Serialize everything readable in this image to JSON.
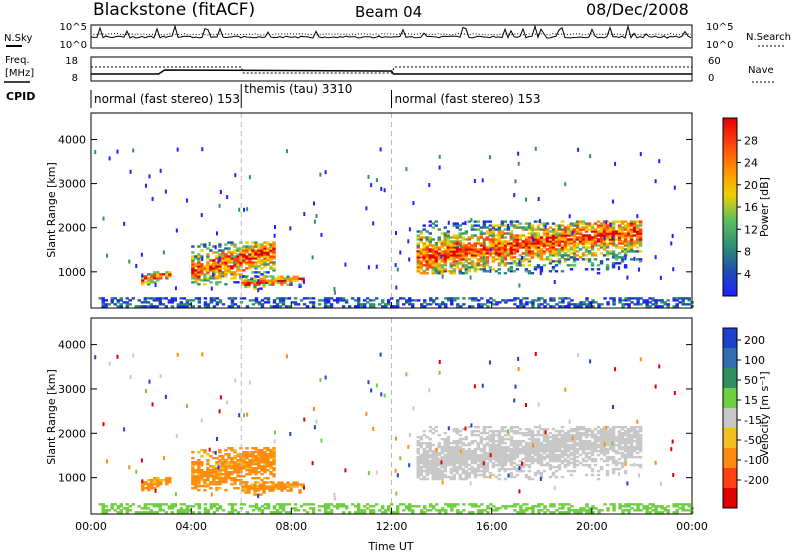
{
  "header": {
    "station": "Blackstone (fitACF)",
    "beam": "Beam 04",
    "date": "08/Dec/2008"
  },
  "top_panels": {
    "noise_label": "N.Sky",
    "noise_right_label": "N.Search",
    "noise_ticks_left": [
      "10^5",
      "10^0"
    ],
    "noise_ticks_right": [
      "10^5",
      "10^0"
    ],
    "freq_label_1": "Freq.",
    "freq_label_2": "[MHz]",
    "freq_ticks_left": [
      "18",
      "8"
    ],
    "nave_label": "Nave",
    "nave_ticks_right": [
      "60",
      "0"
    ],
    "cpid_label": "CPID",
    "cpid_segments": [
      {
        "label": "normal (fast stereo) 153",
        "start_hour": 0,
        "end_hour": 6
      },
      {
        "label": "themis (tau) 3310",
        "start_hour": 6,
        "end_hour": 12
      },
      {
        "label": "normal (fast stereo) 153",
        "start_hour": 12,
        "end_hour": 24
      }
    ]
  },
  "chart_data": [
    {
      "type": "heatmap",
      "name": "power",
      "ylabel": "Slant Range [km]",
      "ylim": [
        180,
        4600
      ],
      "yticks": [
        "1000",
        "2000",
        "3000",
        "4000"
      ],
      "colorbar_label": "Power [dB]",
      "colorbar_ticks": [
        "4",
        "8",
        "12",
        "16",
        "20",
        "24",
        "28"
      ],
      "colorbar_colors": [
        "#1f1fff",
        "#1d4fb0",
        "#2f8f72",
        "#5fbf5f",
        "#f0d000",
        "#ff9000",
        "#ff4010",
        "#e00000"
      ],
      "regions": [
        {
          "t0": 2.0,
          "t1": 3.2,
          "r0": 700,
          "r1": 1000,
          "level": "high"
        },
        {
          "t0": 4.0,
          "t1": 7.3,
          "r0": 700,
          "r1": 1650,
          "level": "high"
        },
        {
          "t0": 6.0,
          "t1": 8.5,
          "r0": 600,
          "r1": 900,
          "level": "high"
        },
        {
          "t0": 13.0,
          "t1": 22.0,
          "r0": 950,
          "r1": 2150,
          "level": "high"
        },
        {
          "t0": 0.3,
          "t1": 24.0,
          "r0": 200,
          "r1": 400,
          "level": "low"
        }
      ]
    },
    {
      "type": "heatmap",
      "name": "velocity",
      "xlabel": "Time UT",
      "ylabel": "Slant Range [km]",
      "ylim": [
        180,
        4600
      ],
      "yticks": [
        "1000",
        "2000",
        "3000",
        "4000"
      ],
      "xticks": [
        "00:00",
        "04:00",
        "08:00",
        "12:00",
        "16:00",
        "20:00",
        "00:00"
      ],
      "colorbar_label": "Velocity [m s⁻¹]",
      "colorbar_ticks": [
        "200",
        "100",
        "50",
        "15",
        "-15",
        "-50",
        "-100",
        "-200"
      ],
      "colorbar_colors": [
        "#1f3fcf",
        "#2f6fb0",
        "#2f8f5f",
        "#70cf40",
        "#c8c8c8",
        "#f0c020",
        "#ff8c10",
        "#ff4010",
        "#e00000"
      ],
      "regions": [
        {
          "t0": 2.0,
          "t1": 3.2,
          "r0": 700,
          "r1": 1000,
          "velocity": -60
        },
        {
          "t0": 4.0,
          "t1": 7.3,
          "r0": 700,
          "r1": 1650,
          "velocity": -60
        },
        {
          "t0": 13.0,
          "t1": 22.0,
          "r0": 950,
          "r1": 2150,
          "velocity": 0
        },
        {
          "t0": 0.3,
          "t1": 12.0,
          "r0": 200,
          "r1": 400,
          "velocity": 30
        }
      ]
    }
  ]
}
